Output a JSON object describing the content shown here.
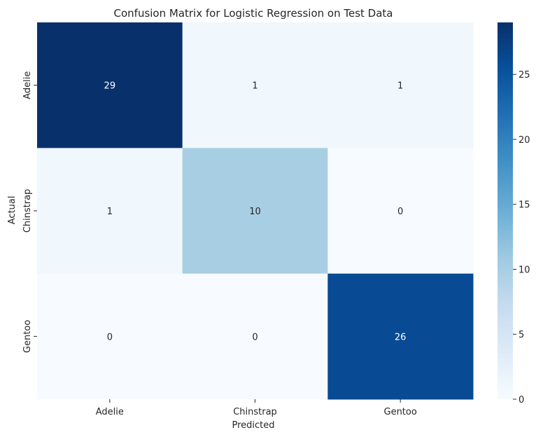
{
  "chart_data": {
    "type": "heatmap",
    "title": "Confusion Matrix for Logistic Regression on Test Data",
    "xlabel": "Predicted",
    "ylabel": "Actual",
    "x_categories": [
      "Adelie",
      "Chinstrap",
      "Gentoo"
    ],
    "y_categories": [
      "Adelie",
      "Chinstrap",
      "Gentoo"
    ],
    "values": [
      [
        29,
        1,
        1
      ],
      [
        1,
        10,
        0
      ],
      [
        0,
        0,
        26
      ]
    ],
    "colormap": "Blues",
    "vmin": 0,
    "vmax": 29,
    "colorbar_ticks": [
      0,
      5,
      10,
      15,
      20,
      25
    ],
    "annotations": true
  }
}
